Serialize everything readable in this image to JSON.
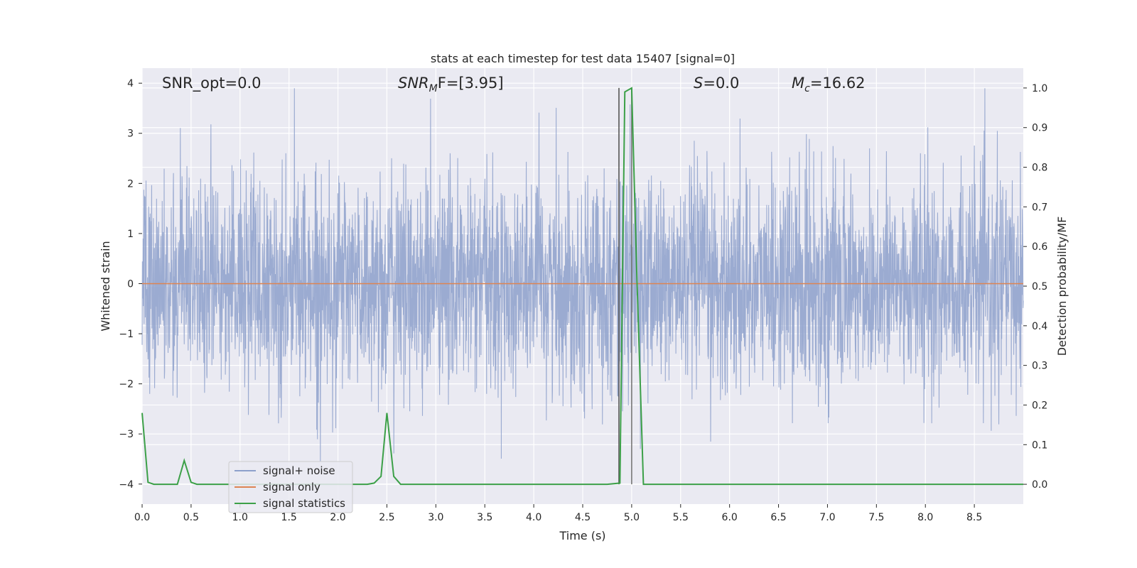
{
  "chart_data": {
    "type": "line",
    "title": "stats at each timestep for test data 15407 [signal=0]",
    "xlabel": "Time (s)",
    "ylabel": "Whitened strain",
    "ylabel_right": "Detection probability/MF",
    "xlim": [
      0.0,
      9.0
    ],
    "ylim": [
      -4.4,
      4.3
    ],
    "ylim_right": [
      -0.05,
      1.05
    ],
    "xticks": [
      0.0,
      0.5,
      1.0,
      1.5,
      2.0,
      2.5,
      3.0,
      3.5,
      4.0,
      4.5,
      5.0,
      5.5,
      6.0,
      6.5,
      7.0,
      7.5,
      8.0,
      8.5
    ],
    "xtick_labels": [
      "0.0",
      "0.5",
      "1.0",
      "1.5",
      "2.0",
      "2.5",
      "3.0",
      "3.5",
      "4.0",
      "4.5",
      "5.0",
      "5.5",
      "6.0",
      "6.5",
      "7.0",
      "7.5",
      "8.0",
      "8.5"
    ],
    "yticks": [
      -4,
      -3,
      -2,
      -1,
      0,
      1,
      2,
      3,
      4
    ],
    "ytick_labels": [
      "−4",
      "−3",
      "−2",
      "−1",
      "0",
      "1",
      "2",
      "3",
      "4"
    ],
    "yticks_right": [
      0.0,
      0.1,
      0.2,
      0.3,
      0.4,
      0.5,
      0.6,
      0.7,
      0.8,
      0.9,
      1.0
    ],
    "ytick_labels_right": [
      "0.0",
      "0.1",
      "0.2",
      "0.3",
      "0.4",
      "0.5",
      "0.6",
      "0.7",
      "0.8",
      "0.9",
      "1.0"
    ],
    "grid": true,
    "legend_placement": "lower-left",
    "annotations": {
      "snr_opt": "SNR_opt=0.0",
      "snr_mf_base": "SNR",
      "snr_mf_sub": "M",
      "snr_mf_rest": "F=[3.95]",
      "s_base": "S",
      "s_rest": "=0.0",
      "mc_base": "M",
      "mc_sub": "c",
      "mc_rest": "=16.62"
    },
    "series": [
      {
        "name": "signal+ noise",
        "color": "#8da0cb",
        "axis": "left",
        "description_of_values": "Gaussian whitened noise, amplitude roughly ±2.5 with peaks near ±4",
        "x_range": [
          0.0,
          9.0
        ],
        "noise_envelope": [
          -3.8,
          3.9
        ]
      },
      {
        "name": "signal only",
        "color": "#dd8452",
        "axis": "left",
        "x": [
          0.0,
          9.0
        ],
        "y": [
          0.0,
          0.0
        ]
      },
      {
        "name": "signal statistics",
        "color": "#3ca048",
        "axis": "right",
        "x": [
          0.0,
          0.06,
          0.12,
          0.2,
          0.3,
          0.36,
          0.43,
          0.5,
          0.56,
          0.7,
          1.0,
          1.5,
          2.0,
          2.3,
          2.37,
          2.44,
          2.5,
          2.57,
          2.64,
          2.8,
          3.0,
          3.5,
          4.0,
          4.5,
          4.75,
          4.88,
          4.93,
          5.0,
          5.05,
          5.12,
          5.2,
          5.5,
          6.0,
          7.0,
          8.0,
          9.0
        ],
        "y": [
          0.18,
          0.005,
          0.0,
          0.0,
          0.0,
          0.0,
          0.06,
          0.005,
          0.0,
          0.0,
          0.0,
          0.0,
          0.0,
          0.0,
          0.003,
          0.02,
          0.18,
          0.02,
          0.0,
          0.0,
          0.0,
          0.0,
          0.0,
          0.0,
          0.0,
          0.003,
          0.99,
          1.0,
          0.55,
          0.0,
          0.0,
          0.0,
          0.0,
          0.0,
          0.0,
          0.0
        ]
      }
    ],
    "vertical_lines": [
      {
        "x": 4.87,
        "y_right": [
          0.0,
          1.0
        ],
        "color": "#555555"
      },
      {
        "x": 5.0,
        "y_right": [
          0.0,
          1.0
        ],
        "color": "#777777"
      }
    ]
  }
}
